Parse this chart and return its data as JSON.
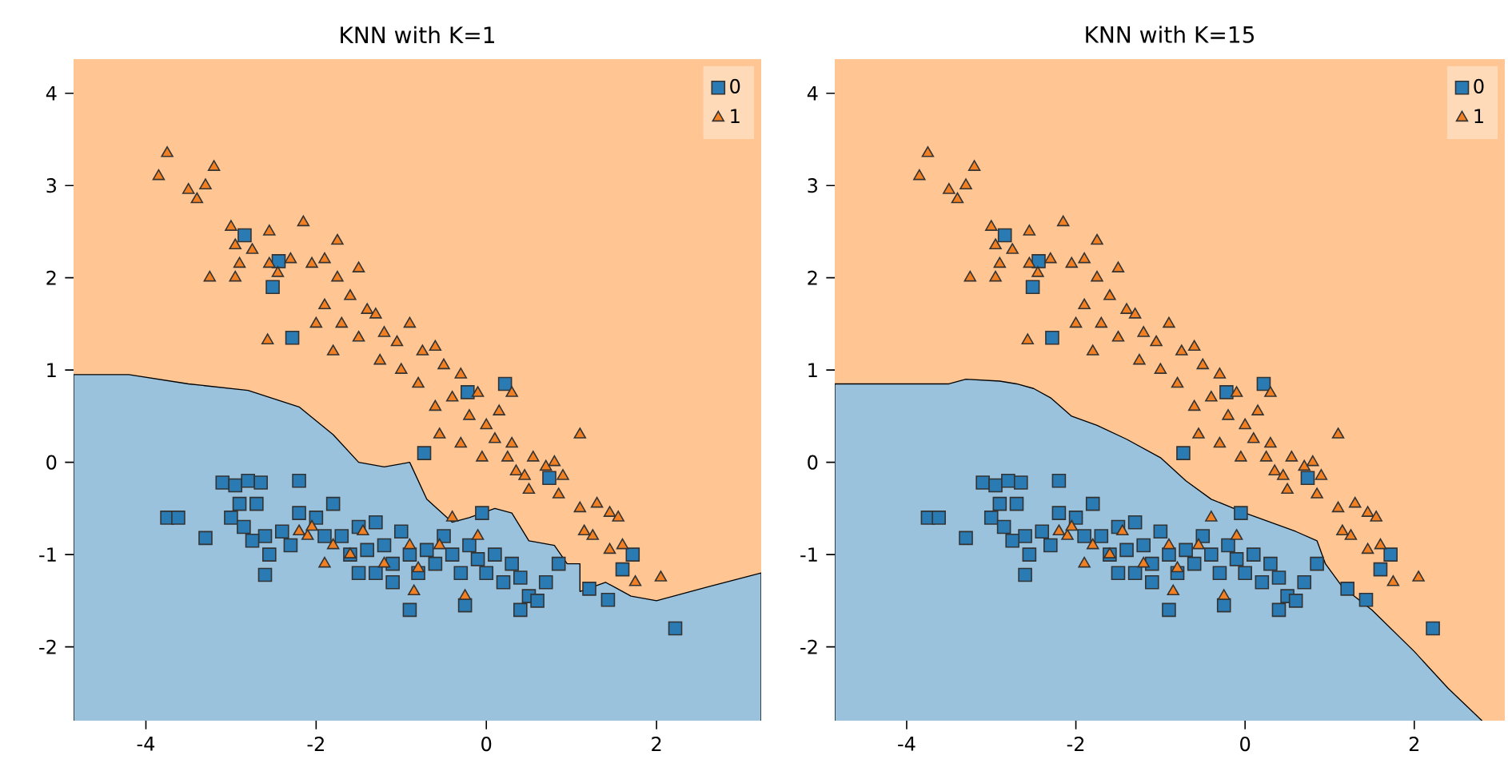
{
  "chart_data": [
    {
      "type": "scatter",
      "title": "KNN with K=1",
      "xlim": [
        -4.85,
        3.23
      ],
      "ylim": [
        -2.8,
        4.37
      ],
      "xticks": [
        -4,
        -2,
        0,
        2
      ],
      "yticks": [
        -2,
        -1,
        0,
        1,
        2,
        3,
        4
      ],
      "legend": "top right",
      "bands": [
        {
          "axis": "y",
          "from": -2.8,
          "to": 4.37,
          "color": "#ffc592"
        }
      ],
      "series": [
        {
          "type": "area",
          "color": "#9ac2dd",
          "x": [
            -4.85,
            -4.2,
            -3.5,
            -2.8,
            -2.2,
            -1.8,
            -1.5,
            -1.2,
            -0.9,
            -0.7,
            -0.4,
            -0.2,
            0.1,
            0.3,
            0.5,
            0.8,
            0.95,
            1.1,
            1.1,
            1.4,
            1.7,
            2.0,
            2.6,
            3.23
          ],
          "values": [
            0.95,
            0.95,
            0.85,
            0.78,
            0.6,
            0.3,
            0.0,
            -0.05,
            0.0,
            -0.4,
            -0.65,
            -0.6,
            -0.5,
            -0.55,
            -0.85,
            -0.9,
            -1.1,
            -1.1,
            -1.4,
            -1.3,
            -1.45,
            -1.5,
            -1.35,
            -1.2
          ]
        },
        {
          "type": "scatter",
          "name": "0",
          "color": "#2a7bb3",
          "marker": "square",
          "x": [
            -3.75,
            -3.62,
            -3.3,
            -3.1,
            -2.95,
            -2.8,
            -2.65,
            -2.9,
            -2.7,
            -3.0,
            -2.85,
            -2.6,
            -2.75,
            -2.4,
            -2.55,
            -2.3,
            -2.6,
            -2.2,
            -2.2,
            -2.0,
            -1.8,
            -1.9,
            -1.7,
            -1.5,
            -1.6,
            -1.4,
            -1.3,
            -1.2,
            -1.1,
            -1.3,
            -1.0,
            -0.9,
            -0.8,
            -0.7,
            -0.6,
            -0.5,
            -0.4,
            -0.3,
            -0.2,
            -0.1,
            0.0,
            0.1,
            0.2,
            0.3,
            0.4,
            0.5,
            0.6,
            0.7,
            0.85,
            -1.1,
            -0.9,
            -1.5,
            -0.05,
            -0.25,
            0.4,
            -2.84,
            -2.44,
            -2.51,
            -2.28,
            0.22,
            -0.22,
            -0.73,
            0.74,
            1.72,
            2.22,
            1.43,
            1.21,
            1.6
          ],
          "values": [
            -0.6,
            -0.6,
            -0.82,
            -0.22,
            -0.25,
            -0.2,
            -0.22,
            -0.45,
            -0.45,
            -0.6,
            -0.7,
            -0.8,
            -0.85,
            -0.75,
            -1.0,
            -0.9,
            -1.22,
            -0.2,
            -0.55,
            -0.6,
            -0.45,
            -0.8,
            -0.8,
            -0.7,
            -1.0,
            -0.95,
            -0.65,
            -0.9,
            -1.1,
            -1.2,
            -0.75,
            -1.0,
            -1.2,
            -0.95,
            -1.1,
            -0.8,
            -1.0,
            -1.2,
            -0.9,
            -1.05,
            -1.2,
            -1.0,
            -1.3,
            -1.1,
            -1.25,
            -1.45,
            -1.5,
            -1.3,
            -1.1,
            -1.3,
            -1.6,
            -1.2,
            -0.55,
            -1.55,
            -1.6,
            2.46,
            2.18,
            1.9,
            1.35,
            0.85,
            0.76,
            0.1,
            -0.17,
            -1.0,
            -1.8,
            -1.49,
            -1.37,
            -1.16
          ]
        },
        {
          "type": "scatter",
          "name": "1",
          "color": "#f28022",
          "marker": "triangle",
          "x": [
            -3.85,
            -3.75,
            -3.5,
            -3.4,
            -3.3,
            -3.2,
            -3.0,
            -2.95,
            -2.9,
            -2.75,
            -2.55,
            -2.45,
            -2.3,
            -2.15,
            -2.55,
            -2.95,
            -2.05,
            -1.9,
            -1.75,
            -1.5,
            -1.75,
            -1.6,
            -1.9,
            -2.0,
            -1.7,
            -1.4,
            -1.3,
            -1.5,
            -1.8,
            -1.2,
            -1.05,
            -1.25,
            -1.0,
            -0.9,
            -0.75,
            -0.6,
            -0.5,
            -0.8,
            -0.6,
            -0.4,
            -0.3,
            -0.2,
            -0.1,
            0.0,
            0.15,
            0.3,
            0.3,
            0.1,
            -0.3,
            -0.55,
            -0.05,
            0.35,
            0.55,
            0.7,
            0.8,
            0.5,
            0.45,
            0.25,
            0.85,
            1.1,
            0.9,
            1.1,
            1.25,
            1.3,
            1.45,
            1.55,
            1.6,
            1.45,
            1.75,
            2.05,
            1.15,
            -2.1,
            -2.2,
            -1.9,
            -1.6,
            -1.2,
            -1.8,
            -0.85,
            -0.25,
            -0.9,
            -0.55,
            -0.1,
            -0.4,
            -2.05,
            -1.45,
            -0.8,
            -3.25,
            -2.57
          ],
          "values": [
            3.1,
            3.35,
            2.95,
            2.85,
            3.0,
            3.2,
            2.55,
            2.35,
            2.15,
            2.3,
            2.15,
            2.05,
            2.2,
            2.6,
            2.5,
            2.0,
            2.15,
            2.2,
            2.4,
            2.1,
            2.0,
            1.8,
            1.7,
            1.5,
            1.5,
            1.65,
            1.6,
            1.35,
            1.2,
            1.4,
            1.3,
            1.1,
            1.0,
            1.5,
            1.2,
            1.25,
            1.05,
            0.85,
            0.6,
            0.7,
            0.95,
            0.5,
            0.75,
            0.4,
            0.55,
            0.75,
            0.2,
            0.25,
            0.2,
            0.3,
            0.05,
            -0.1,
            0.05,
            -0.05,
            0.0,
            -0.3,
            -0.15,
            0.05,
            -0.35,
            0.3,
            -0.15,
            -0.5,
            -0.8,
            -0.45,
            -0.55,
            -0.6,
            -0.9,
            -0.95,
            -1.3,
            -1.25,
            -0.75,
            -0.8,
            -0.75,
            -1.1,
            -1.0,
            -1.1,
            -0.9,
            -1.4,
            -1.45,
            -0.9,
            -0.9,
            -0.8,
            -0.6,
            -0.7,
            -0.75,
            -1.15,
            2.0,
            1.32
          ]
        }
      ]
    },
    {
      "type": "scatter",
      "title": "KNN with K=15",
      "xlim": [
        -4.85,
        3.07
      ],
      "ylim": [
        -2.8,
        4.37
      ],
      "xticks": [
        -4,
        -2,
        0,
        2
      ],
      "yticks": [
        -2,
        -1,
        0,
        1,
        2,
        3,
        4
      ],
      "legend": "top right",
      "bands": [
        {
          "axis": "y",
          "from": -2.8,
          "to": 4.37,
          "color": "#ffc592"
        }
      ],
      "series": [
        {
          "type": "area",
          "color": "#9ac2dd",
          "x": [
            -4.85,
            -3.5,
            -3.3,
            -2.9,
            -2.7,
            -2.5,
            -2.3,
            -2.05,
            -1.75,
            -1.4,
            -1.0,
            -0.7,
            -0.4,
            0.0,
            0.3,
            0.6,
            0.85,
            0.95,
            1.15,
            1.5,
            2.0,
            2.4,
            2.8
          ],
          "values": [
            0.85,
            0.85,
            0.9,
            0.88,
            0.85,
            0.8,
            0.7,
            0.5,
            0.4,
            0.25,
            0.05,
            -0.2,
            -0.4,
            -0.55,
            -0.65,
            -0.75,
            -0.85,
            -1.1,
            -1.35,
            -1.6,
            -2.05,
            -2.45,
            -2.8
          ]
        },
        {
          "type": "scatter",
          "name": "0",
          "color": "#2a7bb3",
          "marker": "square",
          "x": [
            -3.75,
            -3.62,
            -3.3,
            -3.1,
            -2.95,
            -2.8,
            -2.65,
            -2.9,
            -2.7,
            -3.0,
            -2.85,
            -2.6,
            -2.75,
            -2.4,
            -2.55,
            -2.3,
            -2.6,
            -2.2,
            -2.2,
            -2.0,
            -1.8,
            -1.9,
            -1.7,
            -1.5,
            -1.6,
            -1.4,
            -1.3,
            -1.2,
            -1.1,
            -1.3,
            -1.0,
            -0.9,
            -0.8,
            -0.7,
            -0.6,
            -0.5,
            -0.4,
            -0.3,
            -0.2,
            -0.1,
            0.0,
            0.1,
            0.2,
            0.3,
            0.4,
            0.5,
            0.6,
            0.7,
            0.85,
            -1.1,
            -0.9,
            -1.5,
            -0.05,
            -0.25,
            0.4,
            -2.84,
            -2.44,
            -2.51,
            -2.28,
            0.22,
            -0.22,
            -0.73,
            0.74,
            1.72,
            2.22,
            1.43,
            1.21,
            1.6
          ],
          "values": [
            -0.6,
            -0.6,
            -0.82,
            -0.22,
            -0.25,
            -0.2,
            -0.22,
            -0.45,
            -0.45,
            -0.6,
            -0.7,
            -0.8,
            -0.85,
            -0.75,
            -1.0,
            -0.9,
            -1.22,
            -0.2,
            -0.55,
            -0.6,
            -0.45,
            -0.8,
            -0.8,
            -0.7,
            -1.0,
            -0.95,
            -0.65,
            -0.9,
            -1.1,
            -1.2,
            -0.75,
            -1.0,
            -1.2,
            -0.95,
            -1.1,
            -0.8,
            -1.0,
            -1.2,
            -0.9,
            -1.05,
            -1.2,
            -1.0,
            -1.3,
            -1.1,
            -1.25,
            -1.45,
            -1.5,
            -1.3,
            -1.1,
            -1.3,
            -1.6,
            -1.2,
            -0.55,
            -1.55,
            -1.6,
            2.46,
            2.18,
            1.9,
            1.35,
            0.85,
            0.76,
            0.1,
            -0.17,
            -1.0,
            -1.8,
            -1.49,
            -1.37,
            -1.16
          ]
        },
        {
          "type": "scatter",
          "name": "1",
          "color": "#f28022",
          "marker": "triangle",
          "x": [
            -3.85,
            -3.75,
            -3.5,
            -3.4,
            -3.3,
            -3.2,
            -3.0,
            -2.95,
            -2.9,
            -2.75,
            -2.55,
            -2.45,
            -2.3,
            -2.15,
            -2.55,
            -2.95,
            -2.05,
            -1.9,
            -1.75,
            -1.5,
            -1.75,
            -1.6,
            -1.9,
            -2.0,
            -1.7,
            -1.4,
            -1.3,
            -1.5,
            -1.8,
            -1.2,
            -1.05,
            -1.25,
            -1.0,
            -0.9,
            -0.75,
            -0.6,
            -0.5,
            -0.8,
            -0.6,
            -0.4,
            -0.3,
            -0.2,
            -0.1,
            0.0,
            0.15,
            0.3,
            0.3,
            0.1,
            -0.3,
            -0.55,
            -0.05,
            0.35,
            0.55,
            0.7,
            0.8,
            0.5,
            0.45,
            0.25,
            0.85,
            1.1,
            0.9,
            1.1,
            1.25,
            1.3,
            1.45,
            1.55,
            1.6,
            1.45,
            1.75,
            2.05,
            1.15,
            -2.1,
            -2.2,
            -1.9,
            -1.6,
            -1.2,
            -1.8,
            -0.85,
            -0.25,
            -0.9,
            -0.55,
            -0.1,
            -0.4,
            -2.05,
            -1.45,
            -0.8,
            -3.25,
            -2.57
          ],
          "values": [
            3.1,
            3.35,
            2.95,
            2.85,
            3.0,
            3.2,
            2.55,
            2.35,
            2.15,
            2.3,
            2.15,
            2.05,
            2.2,
            2.6,
            2.5,
            2.0,
            2.15,
            2.2,
            2.4,
            2.1,
            2.0,
            1.8,
            1.7,
            1.5,
            1.5,
            1.65,
            1.6,
            1.35,
            1.2,
            1.4,
            1.3,
            1.1,
            1.0,
            1.5,
            1.2,
            1.25,
            1.05,
            0.85,
            0.6,
            0.7,
            0.95,
            0.5,
            0.75,
            0.4,
            0.55,
            0.75,
            0.2,
            0.25,
            0.2,
            0.3,
            0.05,
            -0.1,
            0.05,
            -0.05,
            0.0,
            -0.3,
            -0.15,
            0.05,
            -0.35,
            0.3,
            -0.15,
            -0.5,
            -0.8,
            -0.45,
            -0.55,
            -0.6,
            -0.9,
            -0.95,
            -1.3,
            -1.25,
            -0.75,
            -0.8,
            -0.75,
            -1.1,
            -1.0,
            -1.1,
            -0.9,
            -1.4,
            -1.45,
            -0.9,
            -0.9,
            -0.8,
            -0.6,
            -0.7,
            -0.75,
            -1.15,
            2.0,
            1.32
          ]
        }
      ]
    }
  ]
}
